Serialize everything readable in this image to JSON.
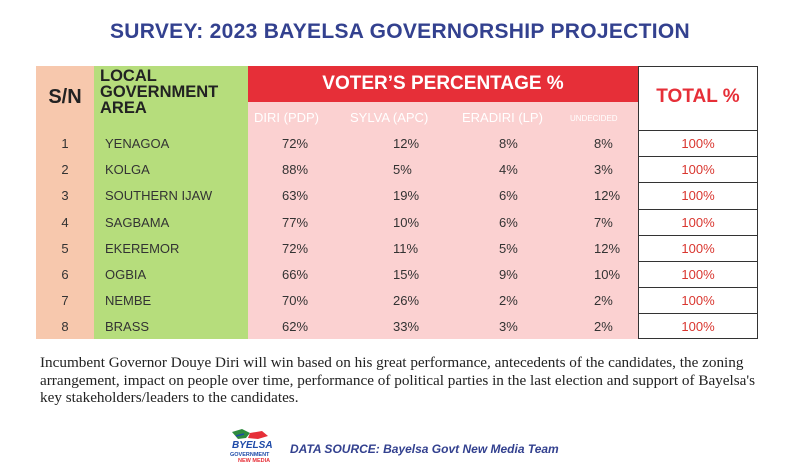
{
  "title": "SURVEY: 2023 BAYELSA GOVERNORSHIP PROJECTION",
  "header": {
    "sn": "S/N",
    "lga": "LOCAL GOVERNMENT AREA",
    "voter_percentage": "VOTER’S PERCENTAGE %",
    "total": "TOTAL %",
    "candidates": [
      "DIRI (PDP)",
      "SYLVA (APC)",
      "ERADIRI (LP)",
      "UNDECIDED"
    ]
  },
  "rows": [
    {
      "sn": "1",
      "lga": "YENAGOA",
      "diri": "72%",
      "sylva": "12%",
      "eradiri": "8%",
      "undecided": "8%",
      "total": "100%"
    },
    {
      "sn": "2",
      "lga": "KOLGA",
      "diri": "88%",
      "sylva": "5%",
      "eradiri": "4%",
      "undecided": "3%",
      "total": "100%"
    },
    {
      "sn": "3",
      "lga": "SOUTHERN IJAW",
      "diri": "63%",
      "sylva": "19%",
      "eradiri": "6%",
      "undecided": "12%",
      "total": "100%"
    },
    {
      "sn": "4",
      "lga": "SAGBAMA",
      "diri": "77%",
      "sylva": "10%",
      "eradiri": "6%",
      "undecided": "7%",
      "total": "100%"
    },
    {
      "sn": "5",
      "lga": "EKEREMOR",
      "diri": "72%",
      "sylva": "11%",
      "eradiri": "5%",
      "undecided": "12%",
      "total": "100%"
    },
    {
      "sn": "6",
      "lga": "OGBIA",
      "diri": "66%",
      "sylva": "15%",
      "eradiri": "9%",
      "undecided": "10%",
      "total": "100%"
    },
    {
      "sn": "7",
      "lga": "NEMBE",
      "diri": "70%",
      "sylva": "26%",
      "eradiri": "2%",
      "undecided": "2%",
      "total": "100%"
    },
    {
      "sn": "8",
      "lga": "BRASS",
      "diri": "62%",
      "sylva": "33%",
      "eradiri": "3%",
      "undecided": "2%",
      "total": "100%"
    }
  ],
  "note": "Incumbent Governor Douye Diri will win based on his great performance, antecedents of the candidates, the zoning arrangement, impact on people over time, performance of political parties in the last election and support of Bayelsa's key stakeholders/leaders to the candidates.",
  "footer": {
    "logo_main": "BYELSA",
    "logo_line1": "GOVERNMENT",
    "logo_line2": "NEW MEDIA",
    "source": "DATA SOURCE: Bayelsa Govt New Media Team"
  },
  "colors": {
    "title": "#33418f",
    "banner": "#e62f38",
    "sn_bg": "#f7c8ad",
    "lga_bg": "#b6dd7c",
    "vote_bg": "#fbd1d1",
    "total_text": "#d9362f"
  }
}
